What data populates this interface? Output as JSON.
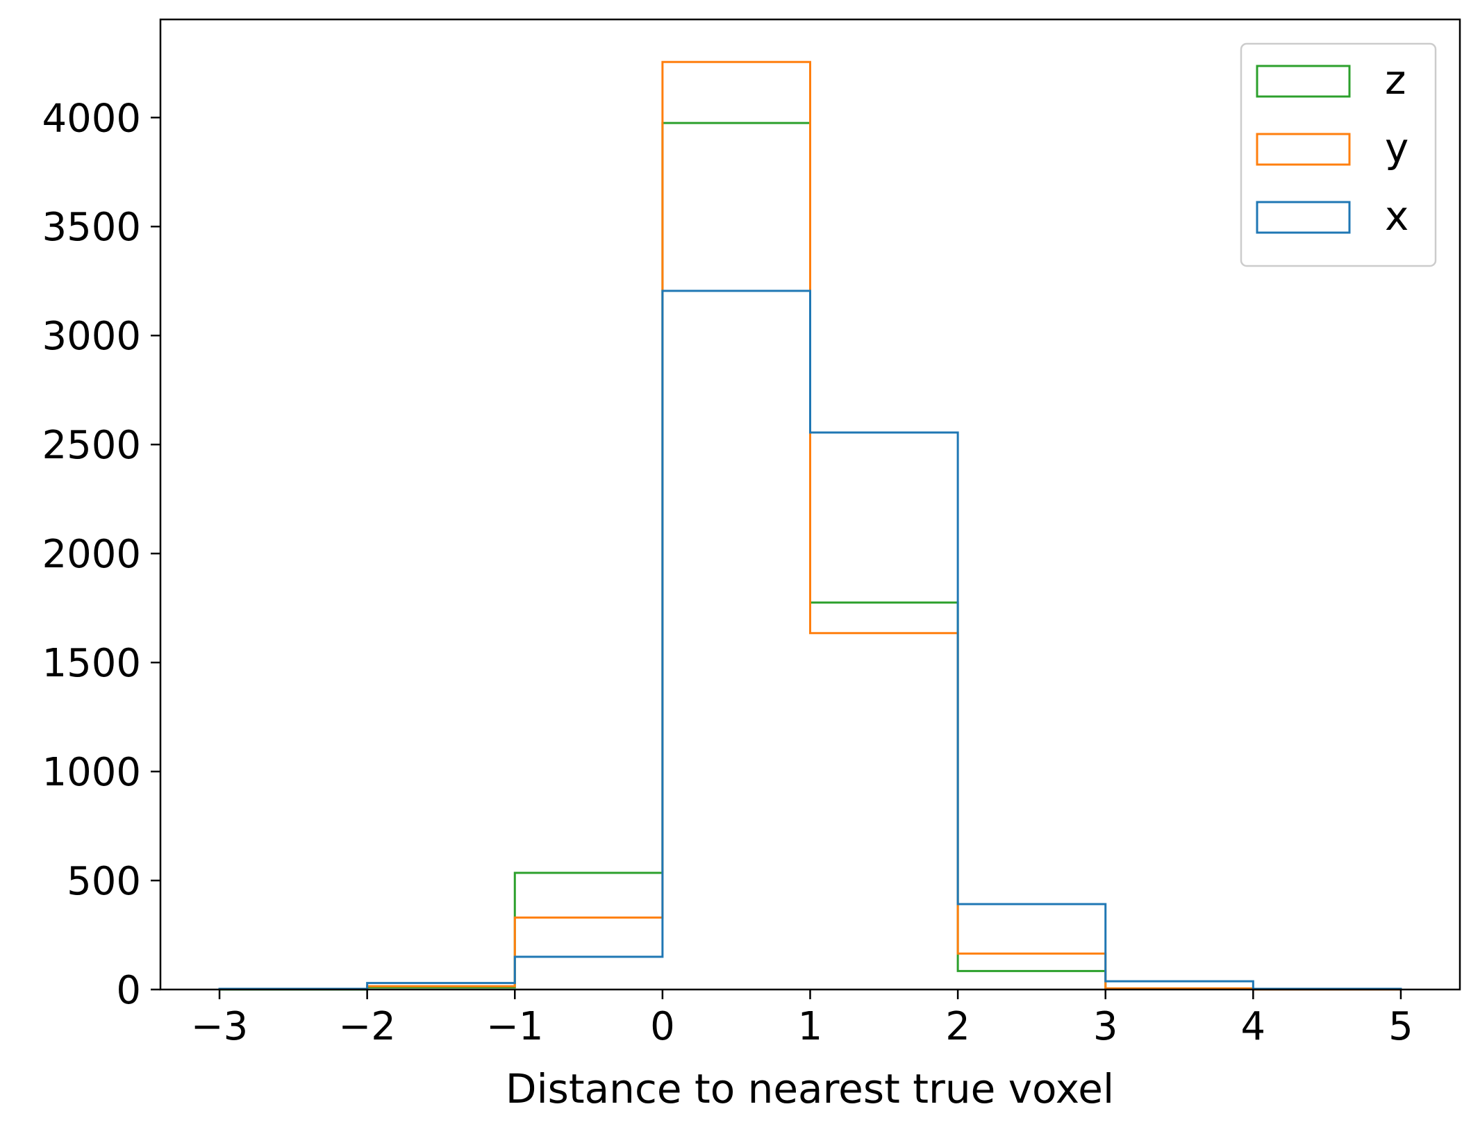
{
  "chart_data": {
    "type": "histogram",
    "title": "",
    "xlabel": "Distance to nearest true voxel",
    "ylabel": "",
    "xlim": [
      -3.4,
      5.4
    ],
    "ylim": [
      0,
      4450
    ],
    "xticks": [
      -3,
      -2,
      -1,
      0,
      1,
      2,
      3,
      4,
      5
    ],
    "xtick_labels": [
      "−3",
      "−2",
      "−1",
      "0",
      "1",
      "2",
      "3",
      "4",
      "5"
    ],
    "yticks": [
      0,
      500,
      1000,
      1500,
      2000,
      2500,
      3000,
      3500,
      4000
    ],
    "ytick_labels": [
      "0",
      "500",
      "1000",
      "1500",
      "2000",
      "2500",
      "3000",
      "3500",
      "4000"
    ],
    "bin_edges": [
      -3,
      -2,
      -1,
      0,
      1,
      2,
      3,
      4,
      5
    ],
    "histtype": "step",
    "grid": false,
    "legend_position": "top-right",
    "series": [
      {
        "name": "z",
        "color": "#2ca02c",
        "values": [
          0,
          10,
          535,
          3975,
          1775,
          85,
          2,
          0
        ]
      },
      {
        "name": "y",
        "color": "#ff7f0e",
        "values": [
          2,
          15,
          330,
          4255,
          1635,
          165,
          5,
          0
        ]
      },
      {
        "name": "x",
        "color": "#1f77b4",
        "values": [
          3,
          30,
          150,
          3205,
          2555,
          392,
          38,
          3
        ]
      }
    ]
  }
}
